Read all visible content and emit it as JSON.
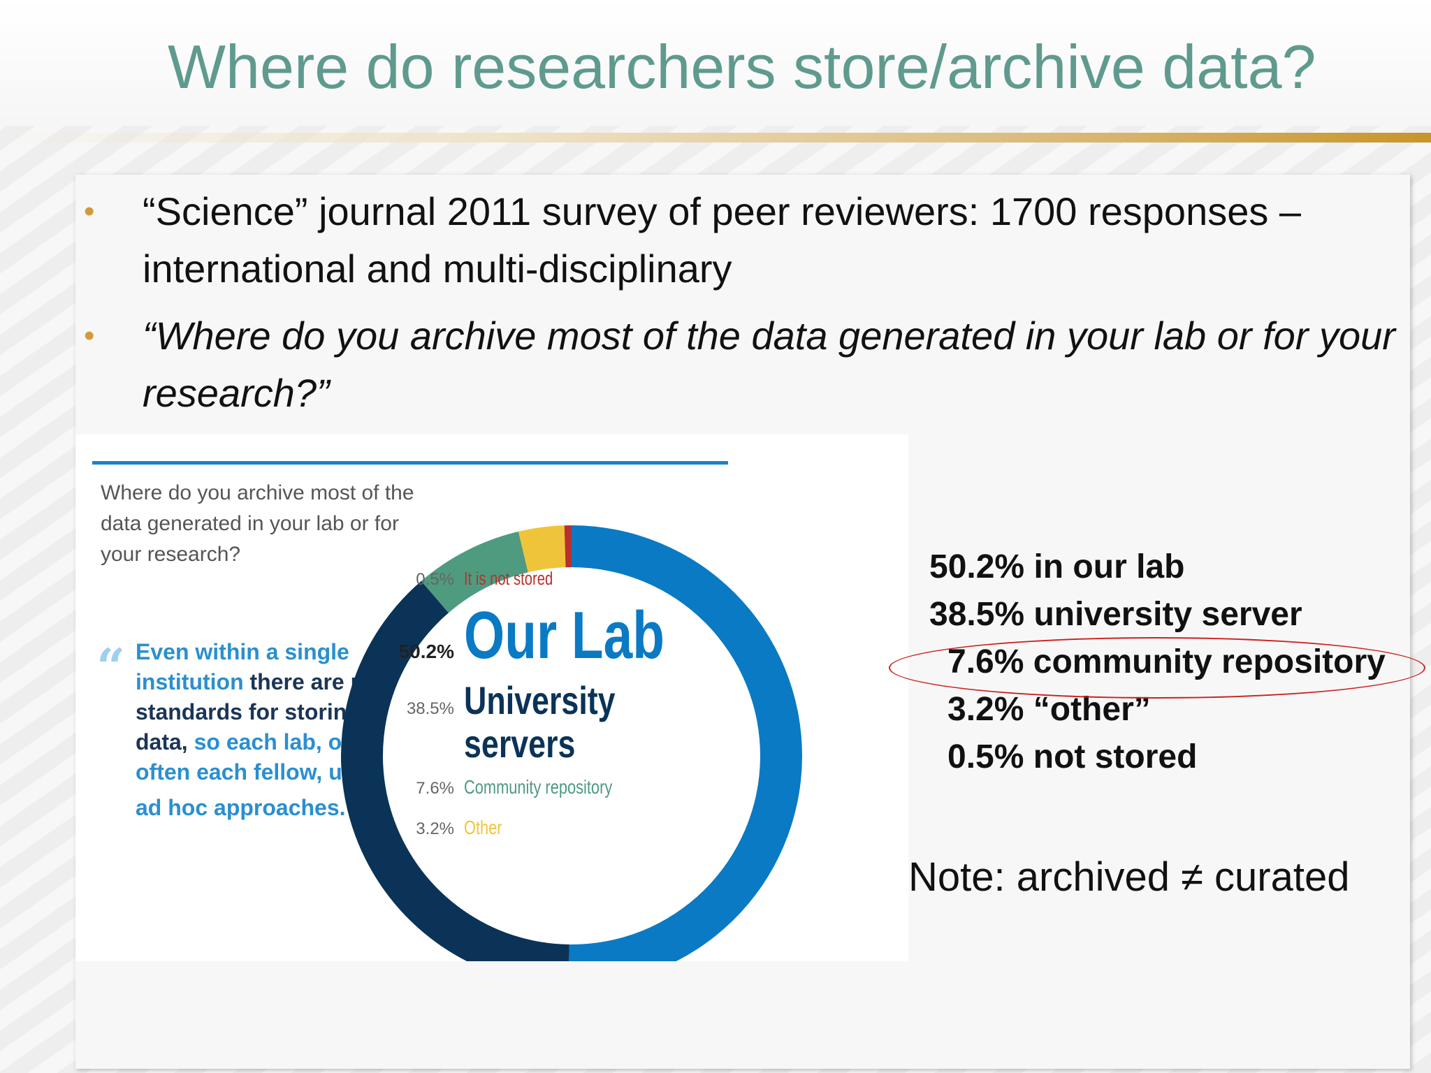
{
  "slide": {
    "title": "Where do researchers store/archive data?",
    "bullets": [
      {
        "text": "“Science” journal 2011 survey of peer reviewers: 1700 responses – international and multi-disciplinary",
        "italic": false
      },
      {
        "text": "“Where do you archive most of the data generated in your lab or for your research?”",
        "italic": true
      }
    ],
    "stats": [
      "50.2% in our lab",
      "38.5% university server",
      "7.6% community repository",
      "3.2% “other”",
      "0.5% not stored"
    ],
    "note": "Note: archived ≠ curated"
  },
  "figure": {
    "question": "Where do you archive most of the data generated in your lab or for your research?",
    "quote": {
      "open_mark": "“",
      "close_mark": "”",
      "part1": "Even within a single institution ",
      "bold": "there are no standards for storing data,",
      "part2": " so each lab, or often each fellow, uses ad hoc approaches."
    }
  },
  "chart_data": {
    "type": "pie",
    "donut": true,
    "categories": [
      "Our Lab",
      "University servers",
      "Community repository",
      "Other",
      "It is not stored"
    ],
    "values": [
      50.2,
      38.5,
      7.6,
      3.2,
      0.5
    ],
    "value_labels": [
      "50.2%",
      "38.5%",
      "7.6%",
      "3.2%",
      "0.5%"
    ],
    "colors": [
      "#0a7ac4",
      "#0b3358",
      "#4f9b80",
      "#f0c43a",
      "#b8312f"
    ],
    "title": "",
    "legend": "center"
  }
}
